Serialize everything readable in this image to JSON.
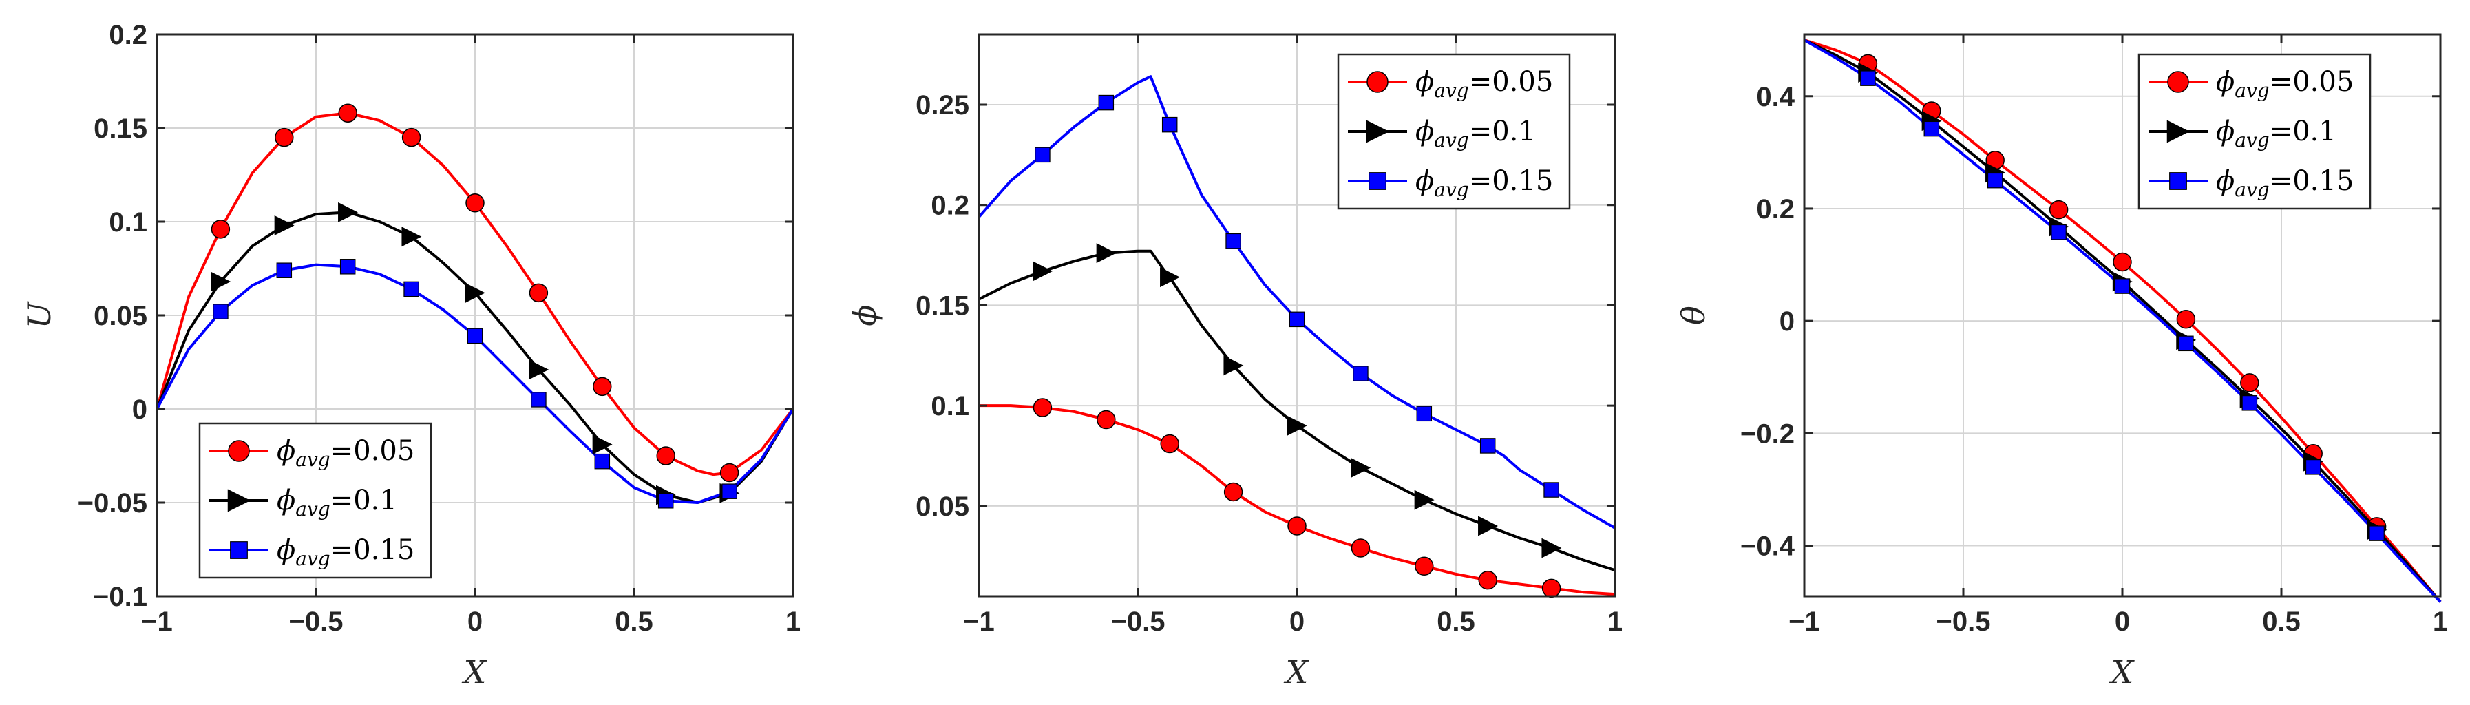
{
  "figure": {
    "colors": {
      "red": "#ff0000",
      "black": "#000000",
      "blue": "#0000ff"
    }
  },
  "chart_data": [
    {
      "type": "line",
      "xlabel": "X",
      "ylabel": "U",
      "xlim": [
        -1,
        1
      ],
      "ylim": [
        -0.1,
        0.2
      ],
      "xticks": [
        "-1",
        "-0.5",
        "0",
        "0.5",
        "1"
      ],
      "yticks": [
        "-0.1",
        "-0.05",
        "0",
        "0.05",
        "0.1",
        "0.15",
        "0.2"
      ],
      "xtick_values": [
        -1,
        -0.5,
        0,
        0.5,
        1
      ],
      "ytick_values": [
        -0.1,
        -0.05,
        0,
        0.05,
        0.1,
        0.15,
        0.2
      ],
      "legend": {
        "position": "bottom-left"
      },
      "series": [
        {
          "name": "0.05",
          "marker": "circle",
          "color": "#ff0000",
          "x": [
            -1,
            -0.9,
            -0.8,
            -0.7,
            -0.6,
            -0.5,
            -0.4,
            -0.3,
            -0.2,
            -0.1,
            0,
            0.1,
            0.2,
            0.3,
            0.4,
            0.5,
            0.6,
            0.7,
            0.75,
            0.8,
            0.9,
            1
          ],
          "y": [
            0,
            0.06,
            0.096,
            0.126,
            0.145,
            0.156,
            0.158,
            0.154,
            0.145,
            0.13,
            0.11,
            0.087,
            0.062,
            0.036,
            0.012,
            -0.01,
            -0.025,
            -0.033,
            -0.035,
            -0.034,
            -0.022,
            0
          ],
          "marker_x": [
            -0.8,
            -0.6,
            -0.4,
            -0.2,
            0,
            0.2,
            0.4,
            0.6,
            0.8
          ],
          "marker_y": [
            0.096,
            0.145,
            0.158,
            0.145,
            0.11,
            0.062,
            0.012,
            -0.025,
            -0.034
          ]
        },
        {
          "name": "0.1",
          "marker": "triangle-right",
          "color": "#000000",
          "x": [
            -1,
            -0.9,
            -0.8,
            -0.7,
            -0.6,
            -0.5,
            -0.4,
            -0.3,
            -0.2,
            -0.1,
            0,
            0.1,
            0.2,
            0.3,
            0.4,
            0.5,
            0.6,
            0.7,
            0.8,
            0.9,
            1
          ],
          "y": [
            0,
            0.042,
            0.068,
            0.087,
            0.098,
            0.104,
            0.105,
            0.1,
            0.092,
            0.078,
            0.062,
            0.042,
            0.021,
            0.002,
            -0.019,
            -0.035,
            -0.046,
            -0.05,
            -0.045,
            -0.028,
            0
          ],
          "marker_x": [
            -0.8,
            -0.6,
            -0.4,
            -0.2,
            0,
            0.2,
            0.4,
            0.6,
            0.8
          ],
          "marker_y": [
            0.068,
            0.098,
            0.105,
            0.092,
            0.062,
            0.021,
            -0.019,
            -0.046,
            -0.045
          ]
        },
        {
          "name": "0.15",
          "marker": "square",
          "color": "#0000ff",
          "x": [
            -1,
            -0.9,
            -0.8,
            -0.7,
            -0.6,
            -0.5,
            -0.4,
            -0.3,
            -0.2,
            -0.1,
            0,
            0.1,
            0.2,
            0.3,
            0.4,
            0.5,
            0.6,
            0.7,
            0.8,
            0.9,
            1
          ],
          "y": [
            0,
            0.032,
            0.052,
            0.066,
            0.074,
            0.077,
            0.076,
            0.072,
            0.064,
            0.053,
            0.039,
            0.022,
            0.005,
            -0.012,
            -0.028,
            -0.042,
            -0.049,
            -0.05,
            -0.044,
            -0.027,
            0
          ],
          "marker_x": [
            -0.8,
            -0.6,
            -0.4,
            -0.2,
            0,
            0.2,
            0.4,
            0.6,
            0.8
          ],
          "marker_y": [
            0.052,
            0.074,
            0.076,
            0.064,
            0.039,
            0.005,
            -0.028,
            -0.049,
            -0.044
          ]
        }
      ]
    },
    {
      "type": "line",
      "xlabel": "X",
      "ylabel": "ϕ",
      "xlim": [
        -1,
        1
      ],
      "ylim": [
        0.005,
        0.285
      ],
      "xticks": [
        "-1",
        "-0.5",
        "0",
        "0.5",
        "1"
      ],
      "yticks": [
        "0.05",
        "0.1",
        "0.15",
        "0.2",
        "0.25"
      ],
      "xtick_values": [
        -1,
        -0.5,
        0,
        0.5,
        1
      ],
      "ytick_values": [
        0.05,
        0.1,
        0.15,
        0.2,
        0.25
      ],
      "legend": {
        "position": "top-right"
      },
      "series": [
        {
          "name": "0.05",
          "marker": "circle",
          "color": "#ff0000",
          "x": [
            -1,
            -0.9,
            -0.8,
            -0.7,
            -0.6,
            -0.5,
            -0.4,
            -0.3,
            -0.2,
            -0.1,
            0,
            0.1,
            0.2,
            0.3,
            0.4,
            0.5,
            0.6,
            0.7,
            0.8,
            0.9,
            1
          ],
          "y": [
            0.1,
            0.1,
            0.099,
            0.097,
            0.093,
            0.088,
            0.081,
            0.07,
            0.057,
            0.047,
            0.04,
            0.034,
            0.029,
            0.024,
            0.02,
            0.016,
            0.013,
            0.011,
            0.009,
            0.007,
            0.006
          ],
          "marker_x": [
            -0.8,
            -0.6,
            -0.4,
            -0.2,
            0,
            0.2,
            0.4,
            0.6,
            0.8
          ],
          "marker_y": [
            0.099,
            0.093,
            0.081,
            0.057,
            0.04,
            0.029,
            0.02,
            0.013,
            0.009
          ]
        },
        {
          "name": "0.1",
          "marker": "triangle-right",
          "color": "#000000",
          "x": [
            -1,
            -0.9,
            -0.8,
            -0.7,
            -0.6,
            -0.5,
            -0.46,
            -0.42,
            -0.4,
            -0.3,
            -0.2,
            -0.1,
            0,
            0.1,
            0.2,
            0.3,
            0.4,
            0.5,
            0.6,
            0.7,
            0.8,
            0.9,
            1
          ],
          "y": [
            0.153,
            0.161,
            0.167,
            0.172,
            0.176,
            0.177,
            0.177,
            0.168,
            0.164,
            0.14,
            0.12,
            0.103,
            0.09,
            0.079,
            0.069,
            0.061,
            0.053,
            0.046,
            0.04,
            0.034,
            0.029,
            0.023,
            0.018
          ],
          "marker_x": [
            -0.8,
            -0.6,
            -0.4,
            -0.2,
            0,
            0.2,
            0.4,
            0.6,
            0.8
          ],
          "marker_y": [
            0.167,
            0.176,
            0.164,
            0.12,
            0.09,
            0.069,
            0.053,
            0.04,
            0.029
          ]
        },
        {
          "name": "0.15",
          "marker": "square",
          "color": "#0000ff",
          "x": [
            -1,
            -0.9,
            -0.8,
            -0.7,
            -0.6,
            -0.5,
            -0.46,
            -0.4,
            -0.3,
            -0.2,
            -0.1,
            0,
            0.1,
            0.2,
            0.3,
            0.4,
            0.5,
            0.6,
            0.65,
            0.7,
            0.8,
            0.9,
            1
          ],
          "y": [
            0.194,
            0.212,
            0.225,
            0.239,
            0.251,
            0.261,
            0.264,
            0.24,
            0.205,
            0.182,
            0.16,
            0.143,
            0.129,
            0.116,
            0.105,
            0.096,
            0.088,
            0.08,
            0.075,
            0.068,
            0.058,
            0.048,
            0.039
          ],
          "marker_x": [
            -0.8,
            -0.6,
            -0.4,
            -0.2,
            0,
            0.2,
            0.4,
            0.6,
            0.8
          ],
          "marker_y": [
            0.225,
            0.251,
            0.24,
            0.182,
            0.143,
            0.116,
            0.096,
            0.08,
            0.058
          ]
        }
      ]
    },
    {
      "type": "line",
      "xlabel": "X",
      "ylabel": "θ",
      "xlim": [
        -1,
        1
      ],
      "ylim": [
        -0.49,
        0.51
      ],
      "xticks": [
        "-1",
        "-0.5",
        "0",
        "0.5",
        "1"
      ],
      "yticks": [
        "-0.4",
        "-0.2",
        "0",
        "0.2",
        "0.4"
      ],
      "xtick_values": [
        -1,
        -0.5,
        0,
        0.5,
        1
      ],
      "ytick_values": [
        -0.4,
        -0.2,
        0,
        0.2,
        0.4
      ],
      "legend": {
        "position": "top-right"
      },
      "series": [
        {
          "name": "0.05",
          "marker": "circle",
          "color": "#ff0000",
          "x": [
            -1,
            -0.9,
            -0.8,
            -0.7,
            -0.6,
            -0.5,
            -0.4,
            -0.3,
            -0.2,
            -0.1,
            0,
            0.1,
            0.2,
            0.3,
            0.4,
            0.5,
            0.6,
            0.7,
            0.8,
            0.9,
            1
          ],
          "y": [
            0.5,
            0.482,
            0.458,
            0.418,
            0.374,
            0.332,
            0.286,
            0.242,
            0.198,
            0.152,
            0.105,
            0.055,
            0.003,
            -0.052,
            -0.11,
            -0.172,
            -0.236,
            -0.3,
            -0.366,
            -0.432,
            -0.5
          ],
          "marker_x": [
            -0.8,
            -0.6,
            -0.4,
            -0.2,
            0,
            0.2,
            0.4,
            0.6,
            0.8
          ],
          "marker_y": [
            0.458,
            0.374,
            0.286,
            0.198,
            0.105,
            0.003,
            -0.11,
            -0.236,
            -0.366
          ]
        },
        {
          "name": "0.1",
          "marker": "triangle-right",
          "color": "#000000",
          "x": [
            -1,
            -0.9,
            -0.8,
            -0.7,
            -0.6,
            -0.5,
            -0.4,
            -0.3,
            -0.2,
            -0.1,
            0,
            0.1,
            0.2,
            0.3,
            0.4,
            0.5,
            0.6,
            0.7,
            0.8,
            0.9,
            1
          ],
          "y": [
            0.5,
            0.473,
            0.442,
            0.4,
            0.356,
            0.31,
            0.264,
            0.216,
            0.168,
            0.118,
            0.07,
            0.018,
            -0.034,
            -0.085,
            -0.138,
            -0.192,
            -0.25,
            -0.31,
            -0.372,
            -0.435,
            -0.5
          ],
          "marker_x": [
            -0.8,
            -0.6,
            -0.4,
            -0.2,
            0,
            0.2,
            0.4,
            0.6,
            0.8
          ],
          "marker_y": [
            0.442,
            0.356,
            0.264,
            0.168,
            0.07,
            -0.034,
            -0.138,
            -0.25,
            -0.372
          ]
        },
        {
          "name": "0.15",
          "marker": "square",
          "color": "#0000ff",
          "x": [
            -1,
            -0.9,
            -0.8,
            -0.7,
            -0.6,
            -0.5,
            -0.4,
            -0.3,
            -0.2,
            -0.1,
            0,
            0.1,
            0.2,
            0.3,
            0.4,
            0.5,
            0.6,
            0.7,
            0.8,
            0.9,
            1
          ],
          "y": [
            0.5,
            0.468,
            0.432,
            0.39,
            0.342,
            0.296,
            0.25,
            0.204,
            0.158,
            0.11,
            0.062,
            0.012,
            -0.04,
            -0.092,
            -0.146,
            -0.202,
            -0.26,
            -0.318,
            -0.378,
            -0.44,
            -0.5
          ],
          "marker_x": [
            -0.8,
            -0.6,
            -0.4,
            -0.2,
            0,
            0.2,
            0.4,
            0.6,
            0.8
          ],
          "marker_y": [
            0.432,
            0.342,
            0.25,
            0.158,
            0.062,
            -0.04,
            -0.146,
            -0.26,
            -0.378
          ]
        }
      ]
    }
  ]
}
